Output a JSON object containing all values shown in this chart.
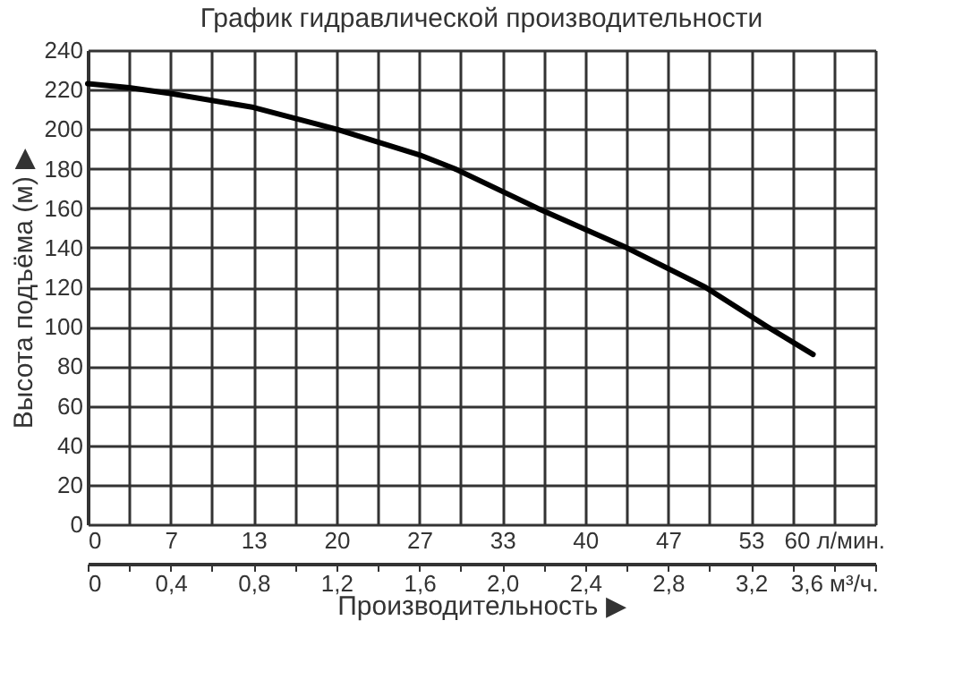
{
  "chart_data": {
    "type": "line",
    "title": "График гидравлической производительности",
    "xlabel": "Производительность ▶",
    "ylabel": "Высота подъёма (м) ▶",
    "x": [
      0,
      0.2,
      0.4,
      0.8,
      1.2,
      1.6,
      1.77,
      2.17,
      2.6,
      2.98,
      3.28,
      3.5
    ],
    "series": [
      {
        "color": "#000000",
        "values": [
          223,
          221,
          218,
          211,
          200,
          187,
          180,
          160,
          140,
          120,
          100,
          86
        ]
      }
    ],
    "xlim": [
      0,
      3.8
    ],
    "xticks": [
      0,
      {
        "value": 0.2,
        "label": null
      },
      {
        "value": 0.4,
        "label": "0,4"
      },
      {
        "value": 0.6,
        "label": null
      },
      {
        "value": 0.8,
        "label": "0,8"
      },
      {
        "value": 1.0,
        "label": null
      },
      {
        "value": 1.2,
        "label": "1,2"
      },
      {
        "value": 1.4,
        "label": null
      },
      {
        "value": 1.6,
        "label": "1,6"
      },
      {
        "value": 1.8,
        "label": null
      },
      {
        "value": 2.0,
        "label": "2,0"
      },
      {
        "value": 2.2,
        "label": null
      },
      {
        "value": 2.4,
        "label": "2,4"
      },
      {
        "value": 2.6,
        "label": null
      },
      {
        "value": 2.8,
        "label": "2,8"
      },
      {
        "value": 3.0,
        "label": null
      },
      {
        "value": 3.2,
        "label": "3,2"
      },
      {
        "value": 3.4,
        "label": null
      },
      {
        "value": 3.6,
        "label": "3,6 м³/ч."
      },
      {
        "value": 3.8,
        "label": null
      }
    ],
    "x2lim": [
      0,
      63.33
    ],
    "x2ticks": [
      0,
      {
        "value": 6.67,
        "label": "7"
      },
      {
        "value": 13.33,
        "label": "13"
      },
      20,
      {
        "value": 26.67,
        "label": "27"
      },
      {
        "value": 33.33,
        "label": "33"
      },
      40,
      {
        "value": 46.67,
        "label": "47"
      },
      {
        "value": 53.33,
        "label": "53"
      },
      {
        "value": 60,
        "label": "60 л/мин."
      }
    ],
    "ylim": [
      0,
      240
    ],
    "yticks": [
      0,
      20,
      40,
      60,
      80,
      100,
      120,
      140,
      160,
      180,
      200,
      220,
      240
    ],
    "grid": true,
    "marker": "none",
    "line_style": "solid"
  }
}
